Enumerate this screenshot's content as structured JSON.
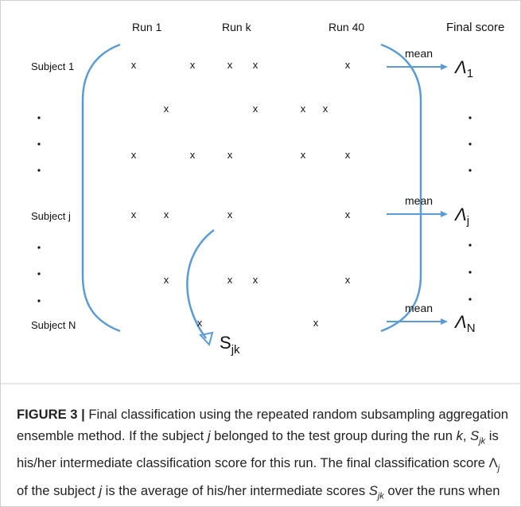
{
  "columns": [
    "Run 1",
    "Run k",
    "Run 40",
    "Final score"
  ],
  "subjects": [
    "Subject 1",
    "Subject j",
    "Subject N"
  ],
  "grid": [
    [
      "x",
      null,
      "x",
      null,
      "x",
      "x",
      null,
      null,
      null,
      "x"
    ],
    [
      null,
      "x",
      null,
      null,
      null,
      "x",
      "x",
      null,
      "x",
      null
    ],
    [
      "x",
      null,
      "x",
      null,
      "x",
      null,
      "x",
      null,
      null,
      "x"
    ],
    [
      "x",
      "x",
      null,
      null,
      "x",
      null,
      null,
      null,
      null,
      "x"
    ],
    [
      null,
      "x",
      null,
      null,
      "x",
      "x",
      null,
      null,
      null,
      "x"
    ],
    [
      null,
      null,
      null,
      "x",
      null,
      null,
      null,
      "x",
      null,
      null
    ]
  ],
  "final_scores": [
    {
      "mean": "mean",
      "symbol": "Λ",
      "subscript": "1"
    },
    {
      "mean": "mean",
      "symbol": "Λ",
      "subscript": "j"
    },
    {
      "mean": "mean",
      "symbol": "Λ",
      "subscript": "N"
    }
  ],
  "intermediate": {
    "symbol": "S",
    "subscript": "jk"
  },
  "caption": {
    "label": "FIGURE 3 |",
    "segments": [
      " Final classification using the repeated random subsampling aggregation ensemble method. If the subject ",
      "j",
      " belonged to the test group during the run ",
      "k",
      ", ",
      "S",
      "jk",
      " is his/her intermediate classification score for this run. The final classification score Λ",
      "j",
      " of the subject ",
      "j",
      " is the average of his/her intermediate scores ",
      "S",
      "jk",
      " over the runs when he/she belonged to the test group."
    ]
  }
}
